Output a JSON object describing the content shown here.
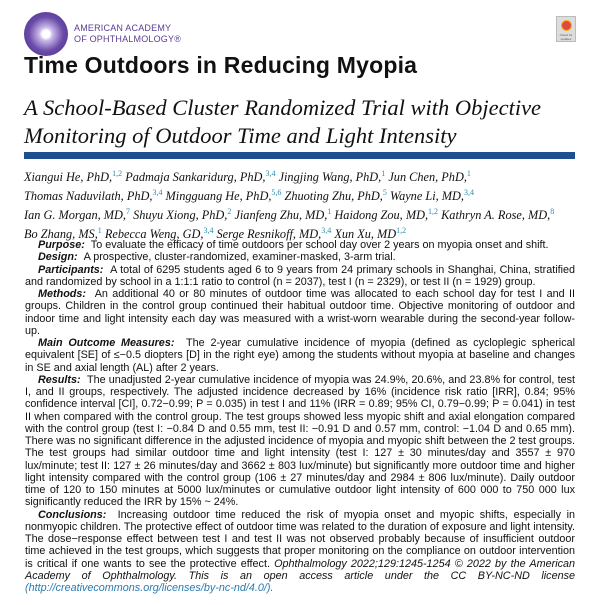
{
  "publisher": {
    "name_line1": "AMERICAN ACADEMY",
    "name_line2": "OF OPHTHALMOLOGY®"
  },
  "check_updates": {
    "label": "Check for updates"
  },
  "title": "Time Outdoors in Reducing Myopia",
  "subtitle": "A School-Based Cluster Randomized Trial with Objective Monitoring of Outdoor Time and Light Intensity",
  "accent_color": "#1f4f8c",
  "authors": [
    {
      "name": "Xiangui He, PhD,",
      "sup": "1,2"
    },
    {
      "name": "Padmaja Sankaridurg, PhD,",
      "sup": "3,4"
    },
    {
      "name": "Jingjing Wang, PhD,",
      "sup": "1"
    },
    {
      "name": "Jun Chen, PhD,",
      "sup": "1"
    },
    {
      "name": "Thomas Naduvilath, PhD,",
      "sup": "3,4"
    },
    {
      "name": "Mingguang He, PhD,",
      "sup": "5,6"
    },
    {
      "name": "Zhuoting Zhu, PhD,",
      "sup": "5"
    },
    {
      "name": "Wayne Li, MD,",
      "sup": "3,4"
    },
    {
      "name": "Ian G. Morgan, MD,",
      "sup": "7"
    },
    {
      "name": "Shuyu Xiong, PhD,",
      "sup": "2"
    },
    {
      "name": "Jianfeng Zhu, MD,",
      "sup": "1"
    },
    {
      "name": "Haidong Zou, MD,",
      "sup": "1,2"
    },
    {
      "name": "Kathryn A. Rose, MD,",
      "sup": "8"
    },
    {
      "name": "Bo Zhang, MS,",
      "sup": "1"
    },
    {
      "name": "Rebecca Weng, GD,",
      "sup": "3,4"
    },
    {
      "name": "Serge Resnikoff, MD,",
      "sup": "3,4"
    },
    {
      "name": "Xun Xu, MD",
      "sup": "1,2"
    }
  ],
  "abstract": {
    "purpose": {
      "label": "Purpose:",
      "text": "To evaluate the efficacy of time outdoors per school day over 2 years on myopia onset and shift."
    },
    "design": {
      "label": "Design:",
      "text": "A prospective, cluster-randomized, examiner-masked, 3-arm trial."
    },
    "participants": {
      "label": "Participants:",
      "text": "A total of 6295 students aged 6 to 9 years from 24 primary schools in Shanghai, China, stratified and randomized by school in a 1:1:1 ratio to control (n = 2037), test I (n = 2329), or test II (n = 1929) group."
    },
    "methods": {
      "label": "Methods:",
      "text": "An additional 40 or 80 minutes of outdoor time was allocated to each school day for test I and II groups. Children in the control group continued their habitual outdoor time. Objective monitoring of outdoor and indoor time and light intensity each day was measured with a wrist-worn wearable during the second-year follow-up."
    },
    "outcome": {
      "label": "Main Outcome Measures:",
      "text": "The 2-year cumulative incidence of myopia (defined as cycloplegic spherical equivalent [SE] of ≤−0.5 diopters [D] in the right eye) among the students without myopia at baseline and changes in SE and axial length (AL) after 2 years."
    },
    "results": {
      "label": "Results:",
      "text": "The unadjusted 2-year cumulative incidence of myopia was 24.9%, 20.6%, and 23.8% for control, test I, and II groups, respectively. The adjusted incidence decreased by 16% (incidence risk ratio [IRR], 0.84; 95% confidence interval [CI], 0.72−0.99; P = 0.035) in test I and 11% (IRR = 0.89; 95% CI, 0.79−0.99; P = 0.041) in test II when compared with the control group. The test groups showed less myopic shift and axial elongation compared with the control group (test I: −0.84 D and 0.55 mm, test II: −0.91 D and 0.57 mm, control: −1.04 D and 0.65 mm). There was no significant difference in the adjusted incidence of myopia and myopic shift between the 2 test groups. The test groups had similar outdoor time and light intensity (test I: 127 ± 30 minutes/day and 3557 ± 970 lux/minute; test II: 127 ± 26 minutes/day and 3662 ± 803 lux/minute) but significantly more outdoor time and higher light intensity compared with the control group (106 ± 27 minutes/day and 2984 ± 806 lux/minute). Daily outdoor time of 120 to 150 minutes at 5000 lux/minutes or cumulative outdoor light intensity of 600 000 to 750 000 lux significantly reduced the IRR by 15% ~ 24%."
    },
    "conclusions": {
      "label": "Conclusions:",
      "text": "Increasing outdoor time reduced the risk of myopia onset and myopic shifts, especially in nonmyopic children. The protective effect of outdoor time was related to the duration of exposure and light intensity. The dose−response effect between test I and test II was not observed probably because of insufficient outdoor time achieved in the test groups, which suggests that proper monitoring on the compliance on outdoor intervention is critical if one wants to see the protective effect."
    },
    "citation": "Ophthalmology 2022;129:1245-1254 © 2022 by the American Academy of Ophthalmology. This is an open access article under the CC BY-NC-ND license",
    "license_link": "(http://creativecommons.org/licenses/by-nc-nd/4.0/)."
  }
}
